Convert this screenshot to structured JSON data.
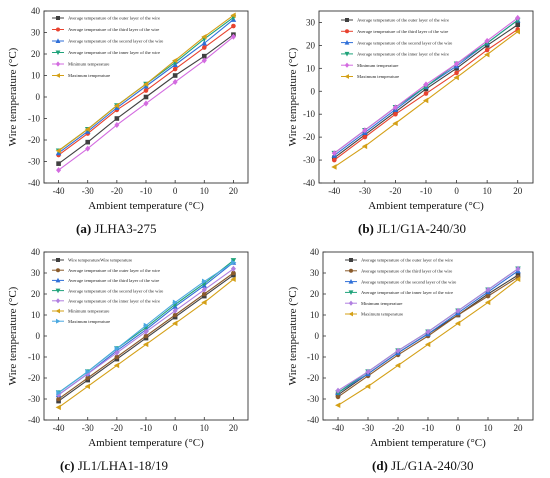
{
  "figure": {
    "xlabel": "Ambient temperature (°C)",
    "ylabel": "Wire temperature (°C)"
  },
  "chart_data": [
    {
      "type": "line",
      "caption_letter": "(a)",
      "caption_text": " JLHA3-275",
      "xlabel": "Ambient temperature (°C)",
      "ylabel": "Wire temperature (°C)",
      "xlim": [
        -45,
        25
      ],
      "ylim": [
        -40,
        40
      ],
      "xticks": [
        -40,
        -30,
        -20,
        -10,
        0,
        10,
        20
      ],
      "yticks": [
        -40,
        -30,
        -20,
        -10,
        0,
        10,
        20,
        30,
        40
      ],
      "x": [
        -40,
        -30,
        -20,
        -10,
        0,
        10,
        20
      ],
      "series": [
        {
          "name": "Average temperature of the outer layer of the wire",
          "color": "#404040",
          "marker": "square",
          "values": [
            -31,
            -21,
            -10,
            0,
            10,
            19,
            29
          ]
        },
        {
          "name": "Average temperature of the third layer of the wire",
          "color": "#e8422f",
          "marker": "circle",
          "values": [
            -27,
            -17,
            -6,
            3,
            13,
            23,
            33
          ]
        },
        {
          "name": "Average temperature of the second layer of the wire",
          "color": "#2f6fd8",
          "marker": "triangle-up",
          "values": [
            -26,
            -16,
            -5,
            5,
            15,
            25,
            36
          ]
        },
        {
          "name": "Average temperature of the inner layer of the wire",
          "color": "#1fa37a",
          "marker": "triangle-down",
          "values": [
            -25,
            -15,
            -4,
            6,
            16,
            27,
            37
          ]
        },
        {
          "name": "Minimum temperature",
          "color": "#d36be0",
          "marker": "diamond",
          "values": [
            -34,
            -24,
            -13,
            -3,
            7,
            17,
            28
          ]
        },
        {
          "name": "Maximum temperature",
          "color": "#d4a017",
          "marker": "triangle-left",
          "values": [
            -25,
            -15,
            -4,
            6,
            17,
            28,
            38
          ]
        }
      ]
    },
    {
      "type": "line",
      "caption_letter": "(b)",
      "caption_text": " JL1/G1A-240/30",
      "xlabel": "Ambient temperature (°C)",
      "ylabel": "Wire temperature (°C)",
      "xlim": [
        -45,
        25
      ],
      "ylim": [
        -40,
        35
      ],
      "xticks": [
        -40,
        -30,
        -20,
        -10,
        0,
        10,
        20
      ],
      "yticks": [
        -40,
        -30,
        -20,
        -10,
        0,
        10,
        20,
        30
      ],
      "x": [
        -40,
        -30,
        -20,
        -10,
        0,
        10,
        20
      ],
      "series": [
        {
          "name": "Average temperature of the outer layer of the wire",
          "color": "#404040",
          "marker": "square",
          "values": [
            -29,
            -19,
            -9,
            1,
            10,
            20,
            29
          ]
        },
        {
          "name": "Average temperature of the third layer of the wire",
          "color": "#e8422f",
          "marker": "circle",
          "values": [
            -30,
            -20,
            -10,
            -1,
            8,
            18,
            27
          ]
        },
        {
          "name": "Average temperature of the second layer of the wire",
          "color": "#2f6fd8",
          "marker": "triangle-up",
          "values": [
            -28,
            -18,
            -8,
            2,
            11,
            21,
            31
          ]
        },
        {
          "name": "Average temperature of the inner layer of the wire",
          "color": "#1fa37a",
          "marker": "triangle-down",
          "values": [
            -27,
            -17,
            -7,
            2,
            12,
            21,
            31
          ]
        },
        {
          "name": "Minimum temperature",
          "color": "#d36be0",
          "marker": "diamond",
          "values": [
            -27,
            -17,
            -7,
            3,
            12,
            22,
            32
          ]
        },
        {
          "name": "Maximum temperature",
          "color": "#d4a017",
          "marker": "triangle-left",
          "values": [
            -33,
            -24,
            -14,
            -4,
            6,
            16,
            26
          ]
        }
      ]
    },
    {
      "type": "line",
      "caption_letter": "(c)",
      "caption_text": " JL1/LHA1-18/19",
      "xlabel": "Ambient temperature (°C)",
      "ylabel": "Wire temperature (°C)",
      "xlim": [
        -45,
        25
      ],
      "ylim": [
        -40,
        40
      ],
      "xticks": [
        -40,
        -30,
        -20,
        -10,
        0,
        10,
        20
      ],
      "yticks": [
        -40,
        -30,
        -20,
        -10,
        0,
        10,
        20,
        30,
        40
      ],
      "x": [
        -40,
        -30,
        -20,
        -10,
        0,
        10,
        20
      ],
      "series": [
        {
          "name": "Wire temperatureWire temperature",
          "color": "#404040",
          "marker": "square",
          "values": [
            -31,
            -21,
            -11,
            -1,
            9,
            19,
            29
          ]
        },
        {
          "name": "Average temperature of the outer layer of the wire",
          "color": "#8a5a2b",
          "marker": "circle",
          "values": [
            -30,
            -20,
            -10,
            0,
            10,
            20,
            30
          ]
        },
        {
          "name": "Average temperature of the third layer of the wire",
          "color": "#2f6fd8",
          "marker": "triangle-up",
          "values": [
            -28,
            -18,
            -7,
            3,
            14,
            24,
            35
          ]
        },
        {
          "name": "Average temperature of the second layer of the wire",
          "color": "#1fa37a",
          "marker": "triangle-down",
          "values": [
            -27,
            -17,
            -6,
            4,
            15,
            25,
            36
          ]
        },
        {
          "name": "Average temperature of the inner layer of the wire",
          "color": "#b07fe0",
          "marker": "diamond",
          "values": [
            -28,
            -18,
            -8,
            2,
            12,
            22,
            32
          ]
        },
        {
          "name": "Minimum temperature",
          "color": "#d4a017",
          "marker": "triangle-left",
          "values": [
            -34,
            -24,
            -14,
            -4,
            6,
            16,
            27
          ]
        },
        {
          "name": "Maximum temperature",
          "color": "#4aa8e0",
          "marker": "triangle-right",
          "values": [
            -27,
            -17,
            -6,
            5,
            16,
            26,
            35
          ]
        }
      ]
    },
    {
      "type": "line",
      "caption_letter": "(d)",
      "caption_text": " JL/G1A-240/30",
      "xlabel": "Ambient temperature (°C)",
      "ylabel": "Wire temperature (°C)",
      "xlim": [
        -45,
        25
      ],
      "ylim": [
        -40,
        40
      ],
      "xticks": [
        -40,
        -30,
        -20,
        -10,
        0,
        10,
        20
      ],
      "yticks": [
        -40,
        -30,
        -20,
        -10,
        0,
        10,
        20,
        30,
        40
      ],
      "x": [
        -40,
        -30,
        -20,
        -10,
        0,
        10,
        20
      ],
      "series": [
        {
          "name": "Average temperature of the outer layer of the wire",
          "color": "#404040",
          "marker": "square",
          "values": [
            -28,
            -18,
            -8,
            1,
            10,
            20,
            29
          ]
        },
        {
          "name": "Average temperature of the third layer of the wire",
          "color": "#8a5a2b",
          "marker": "circle",
          "values": [
            -29,
            -19,
            -9,
            0,
            10,
            19,
            28
          ]
        },
        {
          "name": "Average temperature of the second layer of the wire",
          "color": "#2f6fd8",
          "marker": "triangle-up",
          "values": [
            -27,
            -18,
            -8,
            1,
            11,
            21,
            31
          ]
        },
        {
          "name": "Average temperature of the inner layer of the wire",
          "color": "#1fa37a",
          "marker": "triangle-down",
          "values": [
            -27,
            -17,
            -7,
            2,
            12,
            22,
            32
          ]
        },
        {
          "name": "Minimum temperature",
          "color": "#b07fe0",
          "marker": "diamond",
          "values": [
            -26,
            -17,
            -7,
            2,
            12,
            22,
            32
          ]
        },
        {
          "name": "Maximum temperature",
          "color": "#d4a017",
          "marker": "triangle-left",
          "values": [
            -33,
            -24,
            -14,
            -4,
            6,
            16,
            27
          ]
        }
      ]
    }
  ]
}
